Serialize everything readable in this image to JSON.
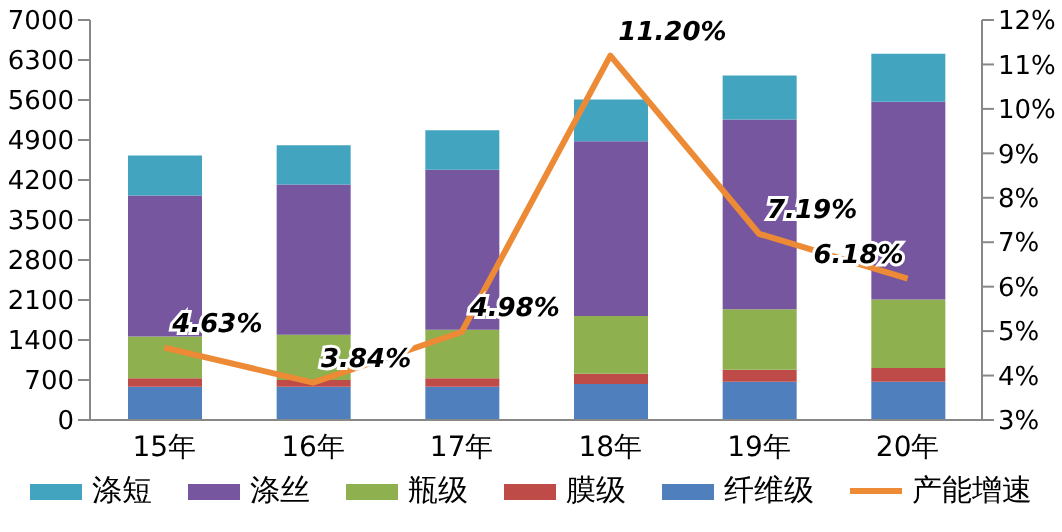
{
  "chart_data": {
    "type": "bar",
    "stacked": true,
    "categories": [
      "15年",
      "16年",
      "17年",
      "18年",
      "19年",
      "20年"
    ],
    "series": [
      {
        "name": "纤维级",
        "color": "#4f7fbc",
        "values": [
          580,
          580,
          580,
          630,
          670,
          670
        ]
      },
      {
        "name": "膜级",
        "color": "#be4b48",
        "values": [
          150,
          120,
          150,
          180,
          210,
          240
        ]
      },
      {
        "name": "瓶级",
        "color": "#8eb04f",
        "values": [
          730,
          790,
          850,
          1010,
          1060,
          1200
        ]
      },
      {
        "name": "涤丝",
        "color": "#7756a0",
        "values": [
          2470,
          2630,
          2800,
          3060,
          3320,
          3460
        ]
      },
      {
        "name": "涤短",
        "color": "#43a4bf",
        "values": [
          700,
          690,
          690,
          730,
          770,
          840
        ]
      },
      {
        "name": "产能增速",
        "type": "line",
        "axis": "y2",
        "color": "#ec8a35",
        "values": [
          4.63,
          3.84,
          4.98,
          11.2,
          7.19,
          6.18
        ],
        "value_labels": [
          "4.63%",
          "3.84%",
          "4.98%",
          "11.20%",
          "7.19%",
          "6.18%"
        ]
      }
    ],
    "ylim": [
      0,
      7000
    ],
    "yticks": [
      0,
      700,
      1400,
      2100,
      2800,
      3500,
      4200,
      4900,
      5600,
      6300,
      7000
    ],
    "y2lim": [
      3,
      12
    ],
    "y2ticks": [
      {
        "value": 3,
        "label": "3%"
      },
      {
        "value": 4,
        "label": "4%"
      },
      {
        "value": 5,
        "label": "5%"
      },
      {
        "value": 6,
        "label": "6%"
      },
      {
        "value": 7,
        "label": "7%"
      },
      {
        "value": 8,
        "label": "8%"
      },
      {
        "value": 9,
        "label": "9%"
      },
      {
        "value": 10,
        "label": "10%"
      },
      {
        "value": 11,
        "label": "11%"
      },
      {
        "value": 12,
        "label": "12%"
      }
    ],
    "grid": false,
    "legend": "bottom",
    "marker": "none",
    "line_style": "solid"
  }
}
